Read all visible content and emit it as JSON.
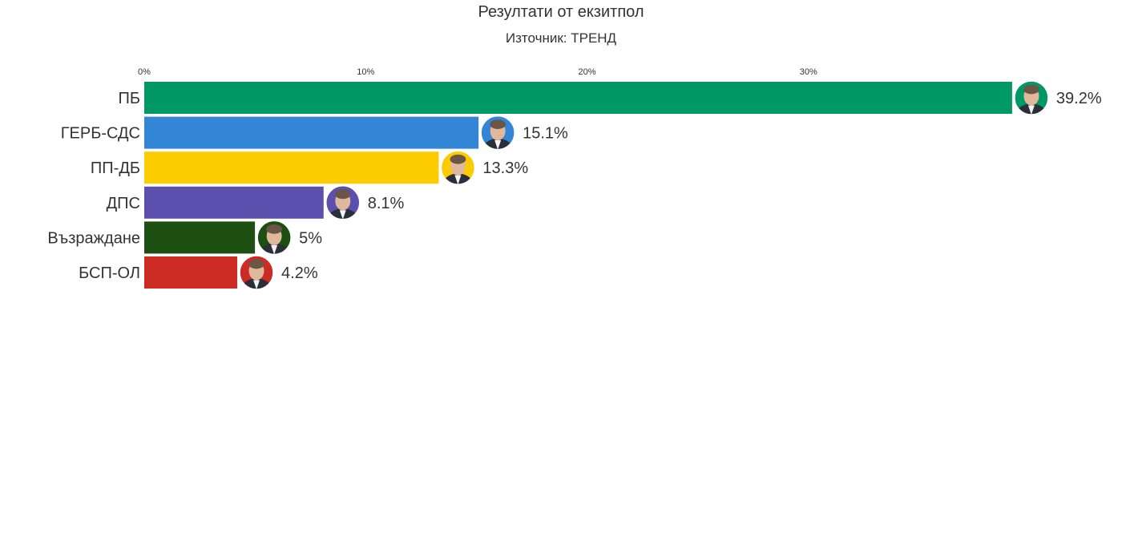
{
  "header": {
    "title": "Резултати от екзитпол",
    "subtitle": "Източник: ТРЕНД"
  },
  "chart_data": {
    "type": "bar",
    "orientation": "horizontal",
    "title": "Резултати от екзитпол",
    "subtitle": "Източник: ТРЕНД",
    "xlim": [
      0,
      40
    ],
    "ticks": [
      0,
      10,
      20,
      30
    ],
    "tick_labels": [
      "0%",
      "10%",
      "20%",
      "30%"
    ],
    "grid": false,
    "categories": [
      "ПБ",
      "ГЕРБ-СДС",
      "ПП-ДБ",
      "ДПС",
      "Възраждане",
      "БСП-ОЛ"
    ],
    "values": [
      39.2,
      15.1,
      13.3,
      8.1,
      5,
      4.2
    ],
    "value_labels": [
      "39.2%",
      "15.1%",
      "13.3%",
      "8.1%",
      "5%",
      "4.2%"
    ],
    "colors": [
      "#009966",
      "#3385d6",
      "#fccc00",
      "#5c4fad",
      "#1d4f12",
      "#cc2b24"
    ],
    "marker_icons": [
      "avatar-icon",
      "avatar-icon",
      "avatar-icon",
      "avatar-icon",
      "avatar-icon",
      "avatar-icon"
    ]
  }
}
